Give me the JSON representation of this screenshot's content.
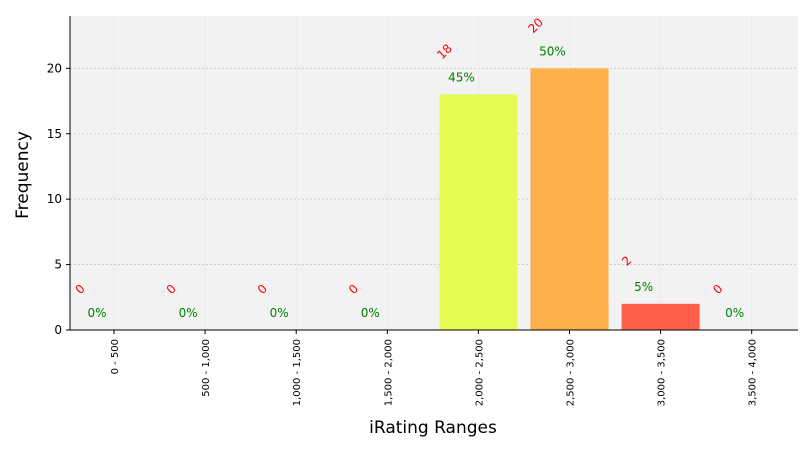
{
  "chart_data": {
    "type": "bar",
    "categories": [
      "0 - 500",
      "500 - 1,000",
      "1,000 - 1,500",
      "1,500 - 2,000",
      "2,000 - 2,500",
      "2,500 - 3,000",
      "3,000 - 3,500",
      "3,500 - 4,000"
    ],
    "values": [
      0,
      0,
      0,
      0,
      18,
      20,
      2,
      0
    ],
    "percent_labels": [
      "0%",
      "0%",
      "0%",
      "0%",
      "45%",
      "50%",
      "5%",
      "0%"
    ],
    "bar_colors": [
      "#ffffff",
      "#ffffff",
      "#ffffff",
      "#ffffff",
      "#e6fb52",
      "#fdb04b",
      "#fe5f48",
      "#ffffff"
    ],
    "xlabel": "iRating Ranges",
    "ylabel": "Frequency",
    "ylim": [
      0,
      24
    ],
    "yticks": [
      0,
      5,
      10,
      15,
      20
    ],
    "grid": true,
    "background_color": "#f2f2f2",
    "count_label_color": "#ff0000",
    "percent_label_color": "#008000"
  }
}
